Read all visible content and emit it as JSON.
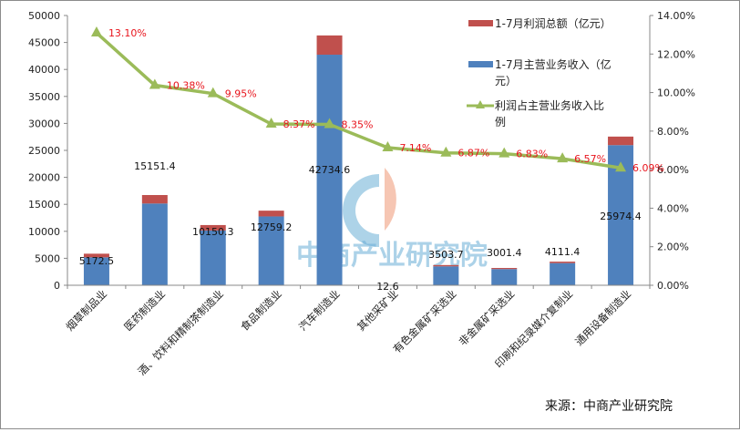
{
  "chart_data": {
    "type": "bar",
    "subtype": "stacked bar with line on secondary axis",
    "title": "",
    "categories": [
      "烟草制品业",
      "医药制造业",
      "酒、饮料和精制茶制造业",
      "食品制造业",
      "汽车制造业",
      "其他采矿业",
      "有色金属矿采选业",
      "非金属矿采选业",
      "印刷和纪录媒介复制业",
      "通用设备制造业"
    ],
    "series": [
      {
        "name": "1-7月主营业务收入（亿元）",
        "type": "bar",
        "axis": "left",
        "color": "#4f81bd",
        "values": [
          5172.5,
          15151.4,
          10150.3,
          12759.2,
          42734.6,
          12.6,
          3503.7,
          3001.4,
          4111.4,
          25974.4
        ]
      },
      {
        "name": "1-7月利润总额（亿元）",
        "type": "bar",
        "axis": "left",
        "color": "#c0504d",
        "values": [
          677.6,
          1572.7,
          1010.0,
          1068.0,
          3568.3,
          0.9,
          240.7,
          205.0,
          270.1,
          1581.8
        ]
      },
      {
        "name": "利润占主营业务收入比例",
        "type": "line",
        "axis": "right",
        "color": "#9bbb59",
        "values": [
          13.1,
          10.38,
          9.95,
          8.37,
          8.35,
          7.14,
          6.87,
          6.83,
          6.57,
          6.09
        ]
      }
    ],
    "revenue_labels": [
      "5172.5",
      "15151.4",
      "10150.3",
      "12759.2",
      "42734.6",
      "12.6",
      "3503.7",
      "3001.4",
      "4111.4",
      "25974.4"
    ],
    "ratio_labels": [
      "13.10%",
      "10.38%",
      "9.95%",
      "8.37%",
      "8.35%",
      "7.14%",
      "6.87%",
      "6.83%",
      "6.57%",
      "6.09%"
    ],
    "xlabel": "",
    "ylabel": "",
    "ylim": [
      0,
      50000
    ],
    "y_ticks": [
      "0",
      "5000",
      "10000",
      "15000",
      "20000",
      "25000",
      "30000",
      "35000",
      "40000",
      "45000",
      "50000"
    ],
    "y2lim": [
      0,
      14
    ],
    "y2_ticks": [
      "0.00%",
      "2.00%",
      "4.00%",
      "6.00%",
      "8.00%",
      "10.00%",
      "12.00%",
      "14.00%"
    ],
    "grid": false,
    "legend_position": "top-right",
    "legend": [
      {
        "label_lines": [
          "1-7月利润总额（亿元）"
        ],
        "color": "#c0504d",
        "kind": "bar"
      },
      {
        "label_lines": [
          "1-7月主营业务收入（亿",
          "元）"
        ],
        "color": "#4f81bd",
        "kind": "bar"
      },
      {
        "label_lines": [
          "利润占主营业务收入比",
          "例"
        ],
        "color": "#9bbb59",
        "kind": "line"
      }
    ]
  },
  "source_note": "来源：中商产业研究院",
  "watermark": "中商产业研究院"
}
